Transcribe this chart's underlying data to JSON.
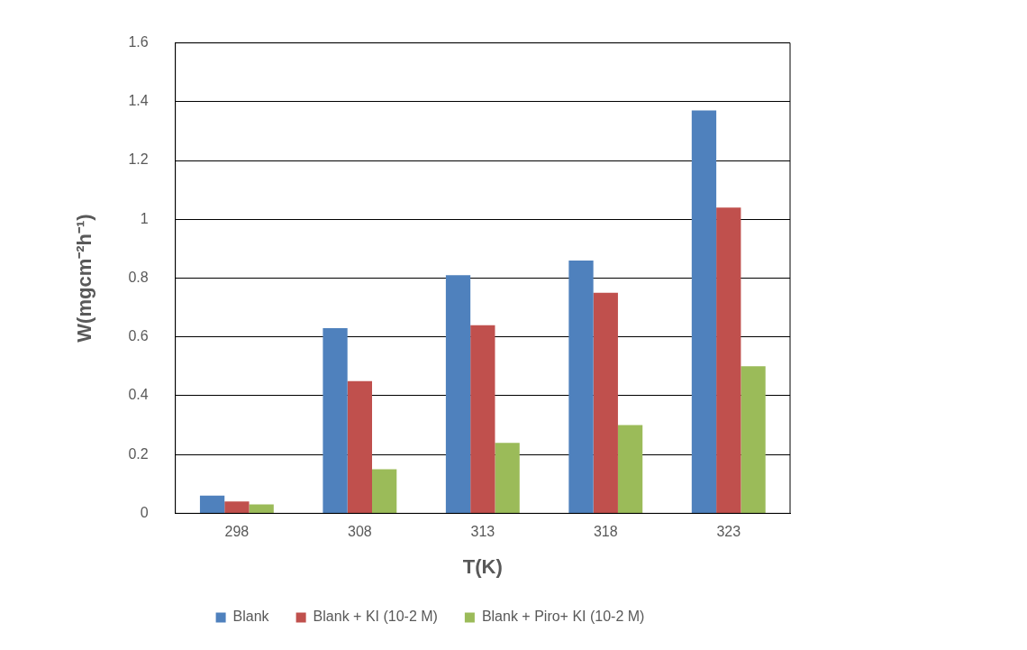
{
  "chart_data": {
    "type": "bar",
    "xlabel": "T(K)",
    "ylabel": "W(mgcm⁻²h⁻¹)",
    "categories": [
      "298",
      "308",
      "313",
      "318",
      "323"
    ],
    "series": [
      {
        "name": "Blank",
        "color": "#4f81bd",
        "values": [
          0.06,
          0.63,
          0.81,
          0.86,
          1.37
        ]
      },
      {
        "name": "Blank + KI (10-2 M)",
        "color": "#c0504d",
        "values": [
          0.04,
          0.45,
          0.64,
          0.75,
          1.04
        ]
      },
      {
        "name": "Blank + Piro+ KI (10-2 M)",
        "color": "#9bbb59",
        "values": [
          0.03,
          0.15,
          0.24,
          0.3,
          0.5
        ]
      }
    ],
    "ylim": [
      0,
      1.6
    ],
    "yticks": [
      0,
      0.2,
      0.4,
      0.6,
      0.8,
      1,
      1.2,
      1.4,
      1.6
    ],
    "grid": "y",
    "legend": "bottom"
  }
}
